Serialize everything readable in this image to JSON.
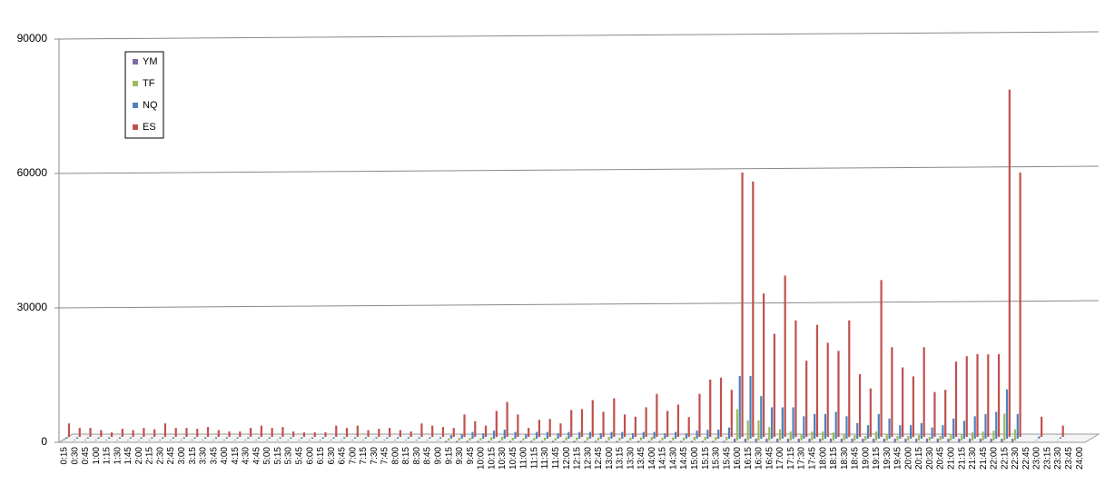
{
  "chart_data": {
    "type": "bar",
    "categories": [
      "0:15",
      "0:30",
      "0:45",
      "1:00",
      "1:15",
      "1:30",
      "1:45",
      "2:00",
      "2:15",
      "2:30",
      "2:45",
      "3:00",
      "3:15",
      "3:30",
      "3:45",
      "4:00",
      "4:15",
      "4:30",
      "4:45",
      "5:00",
      "5:15",
      "5:30",
      "5:45",
      "6:00",
      "6:15",
      "6:30",
      "6:45",
      "7:00",
      "7:15",
      "7:30",
      "7:45",
      "8:00",
      "8:15",
      "8:30",
      "8:45",
      "9:00",
      "9:15",
      "9:30",
      "9:45",
      "10:00",
      "10:15",
      "10:30",
      "10:45",
      "11:00",
      "11:15",
      "11:30",
      "11:45",
      "12:00",
      "12:15",
      "12:30",
      "12:45",
      "13:00",
      "13:15",
      "13:30",
      "13:45",
      "14:00",
      "14:15",
      "14:30",
      "14:45",
      "15:00",
      "15:15",
      "15:30",
      "15:45",
      "16:00",
      "16:15",
      "16:30",
      "16:45",
      "17:00",
      "17:15",
      "17:30",
      "17:45",
      "18:00",
      "18:15",
      "18:30",
      "18:45",
      "19:00",
      "19:15",
      "19:30",
      "19:45",
      "20:00",
      "20:15",
      "20:30",
      "20:45",
      "21:00",
      "21:15",
      "21:30",
      "21:45",
      "22:00",
      "22:15",
      "22:30",
      "22:45",
      "23:00",
      "23:15",
      "23:30",
      "23:45",
      "24:00"
    ],
    "series": [
      {
        "name": "YM",
        "color": "#7f6aa8",
        "values": [
          100,
          100,
          100,
          100,
          100,
          100,
          100,
          100,
          100,
          100,
          100,
          100,
          100,
          100,
          100,
          100,
          100,
          100,
          100,
          100,
          100,
          100,
          100,
          100,
          100,
          100,
          100,
          100,
          100,
          100,
          100,
          100,
          100,
          100,
          100,
          100,
          300,
          300,
          300,
          300,
          300,
          300,
          300,
          300,
          300,
          300,
          300,
          300,
          300,
          300,
          300,
          300,
          300,
          300,
          300,
          300,
          300,
          300,
          300,
          300,
          300,
          300,
          300,
          800,
          800,
          800,
          800,
          800,
          800,
          800,
          800,
          800,
          800,
          800,
          800,
          800,
          800,
          800,
          800,
          800,
          800,
          800,
          800,
          800,
          800,
          800,
          800,
          800,
          800,
          800,
          0,
          100,
          0,
          50,
          0,
          0
        ]
      },
      {
        "name": "TF",
        "color": "#9bbb59",
        "values": [
          200,
          200,
          200,
          200,
          200,
          200,
          200,
          200,
          200,
          200,
          200,
          200,
          200,
          200,
          200,
          200,
          200,
          200,
          200,
          200,
          200,
          200,
          200,
          200,
          200,
          200,
          200,
          200,
          200,
          200,
          200,
          200,
          200,
          200,
          200,
          200,
          500,
          600,
          600,
          500,
          700,
          800,
          600,
          500,
          600,
          600,
          500,
          700,
          700,
          800,
          600,
          800,
          600,
          600,
          700,
          800,
          600,
          700,
          600,
          800,
          800,
          800,
          800,
          7000,
          4500,
          4500,
          3000,
          2500,
          2000,
          1500,
          2000,
          2000,
          1800,
          1500,
          1200,
          1000,
          2000,
          1500,
          1000,
          1000,
          1200,
          800,
          1000,
          1500,
          1500,
          1800,
          2000,
          2200,
          6000,
          2500,
          0,
          200,
          0,
          100,
          0,
          0
        ]
      },
      {
        "name": "NQ",
        "color": "#4f81bd",
        "values": [
          300,
          300,
          300,
          300,
          300,
          300,
          300,
          300,
          300,
          300,
          300,
          300,
          300,
          300,
          300,
          300,
          300,
          300,
          300,
          300,
          300,
          300,
          300,
          300,
          300,
          300,
          300,
          300,
          300,
          300,
          300,
          300,
          300,
          300,
          300,
          300,
          800,
          1000,
          1500,
          1200,
          1800,
          2000,
          1500,
          1000,
          1500,
          1500,
          1200,
          1500,
          1500,
          1500,
          1200,
          1500,
          1500,
          1200,
          1500,
          1500,
          1200,
          1500,
          1200,
          1800,
          2000,
          2000,
          2500,
          14000,
          14000,
          9500,
          7000,
          7000,
          7000,
          5000,
          5500,
          5500,
          6000,
          5000,
          3500,
          3000,
          5500,
          4500,
          3000,
          3000,
          3500,
          2500,
          3000,
          4500,
          4000,
          5000,
          5500,
          6000,
          11000,
          5500,
          0,
          500,
          0,
          300,
          0,
          0
        ]
      },
      {
        "name": "ES",
        "color": "#c0504d",
        "values": [
          3000,
          2000,
          2000,
          1500,
          1000,
          1800,
          1500,
          2000,
          1700,
          3000,
          2000,
          2000,
          1800,
          2200,
          1500,
          1200,
          1200,
          2000,
          2500,
          2000,
          2200,
          1200,
          1000,
          1000,
          1000,
          2500,
          2000,
          2500,
          1500,
          1800,
          2000,
          1500,
          1200,
          3000,
          2500,
          2200,
          2000,
          5000,
          3500,
          2500,
          5800,
          7800,
          5000,
          2000,
          3800,
          4000,
          3000,
          6000,
          6200,
          8200,
          5600,
          8600,
          5000,
          4500,
          6600,
          9600,
          5800,
          7200,
          4400,
          9600,
          12800,
          13200,
          10500,
          59000,
          57000,
          32000,
          23000,
          36000,
          26000,
          17000,
          25000,
          21000,
          19200,
          26000,
          14000,
          10800,
          35000,
          20000,
          15500,
          13500,
          20000,
          10000,
          10500,
          16800,
          18000,
          18500,
          18400,
          18500,
          77500,
          59000,
          0,
          4500,
          0,
          2500,
          0,
          0
        ]
      }
    ],
    "ylim": [
      0,
      90000
    ],
    "yticks": [
      0,
      30000,
      60000,
      90000
    ],
    "grid": true
  }
}
